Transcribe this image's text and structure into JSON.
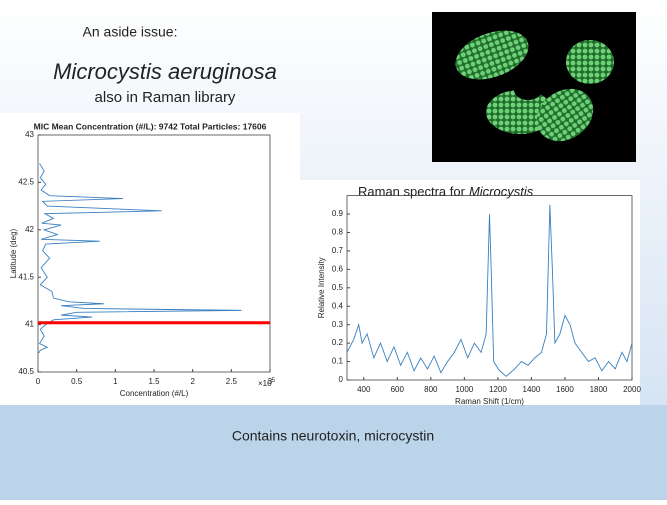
{
  "slide": {
    "aside": "An aside issue:",
    "species": "Microcystis aeruginosa",
    "library_note": "also in Raman library",
    "footer": "Contains neurotoxin, microcystin"
  },
  "chart_data": [
    {
      "type": "line",
      "orientation": "horizontal",
      "title": "MIC   Mean Concentration (#/L): 9742   Total Particles: 17606",
      "xlabel": "Concentration (#/L)",
      "ylabel": "Latitude (deg)",
      "x_multiplier": "×10",
      "x_multiplier_power": "5",
      "color": "#3b7fc0",
      "hline": 41.02,
      "hline_color": "#ff0000",
      "xlim": [
        0,
        300000
      ],
      "ylim": [
        40.5,
        43
      ],
      "xticks": [
        {
          "value": 0,
          "label": "0"
        },
        {
          "value": 50000,
          "label": "0.5"
        },
        {
          "value": 100000,
          "label": "1"
        },
        {
          "value": 150000,
          "label": "1.5"
        },
        {
          "value": 200000,
          "label": "2"
        },
        {
          "value": 250000,
          "label": "2.5"
        },
        {
          "value": 300000,
          "label": "3"
        }
      ],
      "yticks": [
        40.5,
        41,
        41.5,
        42,
        42.5,
        43
      ],
      "y": [
        42.7,
        42.62,
        42.55,
        42.48,
        42.42,
        42.36,
        42.33,
        42.3,
        42.25,
        42.2,
        42.17,
        42.12,
        42.07,
        42.05,
        42.0,
        41.95,
        41.9,
        41.88,
        41.85,
        41.78,
        41.7,
        41.6,
        41.5,
        41.42,
        41.35,
        41.28,
        41.24,
        41.22,
        41.2,
        41.17,
        41.15,
        41.13,
        41.1,
        41.08,
        41.05,
        41.0,
        40.95,
        40.88,
        40.8,
        40.76,
        40.73,
        40.7
      ],
      "values": [
        2000,
        8000,
        3000,
        10000,
        4000,
        15000,
        110000,
        6000,
        12000,
        160000,
        9000,
        20000,
        5000,
        30000,
        8000,
        25000,
        4000,
        80000,
        10000,
        6000,
        15000,
        4000,
        12000,
        3000,
        18000,
        20000,
        40000,
        85000,
        30000,
        60000,
        263000,
        50000,
        30000,
        70000,
        20000,
        10000,
        3000,
        8000,
        2000,
        12000,
        3000,
        1000
      ]
    },
    {
      "type": "line",
      "orientation": "vertical",
      "title": "Raman spectra for",
      "title_emphasis": "Microcystis",
      "xlabel": "Raman Shift (1/cm)",
      "ylabel": "Relative Intensity",
      "color": "#3b7fc0",
      "xlim": [
        300,
        2000
      ],
      "ylim": [
        0,
        1
      ],
      "xticks": [
        400,
        600,
        800,
        1000,
        1200,
        1400,
        1600,
        1800,
        2000
      ],
      "yticks": [
        0,
        0.1,
        0.2,
        0.3,
        0.4,
        0.5,
        0.6,
        0.7,
        0.8,
        0.9
      ],
      "x": [
        300,
        340,
        370,
        390,
        420,
        460,
        500,
        540,
        580,
        620,
        660,
        700,
        740,
        780,
        820,
        860,
        900,
        940,
        980,
        1020,
        1060,
        1100,
        1130,
        1150,
        1160,
        1175,
        1210,
        1250,
        1300,
        1340,
        1380,
        1420,
        1460,
        1490,
        1510,
        1525,
        1540,
        1570,
        1600,
        1630,
        1660,
        1700,
        1740,
        1780,
        1820,
        1860,
        1900,
        1940,
        1970,
        2000
      ],
      "values": [
        0.15,
        0.22,
        0.3,
        0.2,
        0.25,
        0.12,
        0.2,
        0.1,
        0.18,
        0.08,
        0.15,
        0.05,
        0.12,
        0.06,
        0.13,
        0.04,
        0.1,
        0.15,
        0.22,
        0.12,
        0.2,
        0.15,
        0.25,
        0.9,
        0.6,
        0.1,
        0.05,
        0.02,
        0.06,
        0.1,
        0.08,
        0.12,
        0.15,
        0.25,
        0.95,
        0.6,
        0.2,
        0.25,
        0.35,
        0.3,
        0.2,
        0.15,
        0.1,
        0.12,
        0.05,
        0.1,
        0.06,
        0.15,
        0.1,
        0.2
      ]
    }
  ]
}
